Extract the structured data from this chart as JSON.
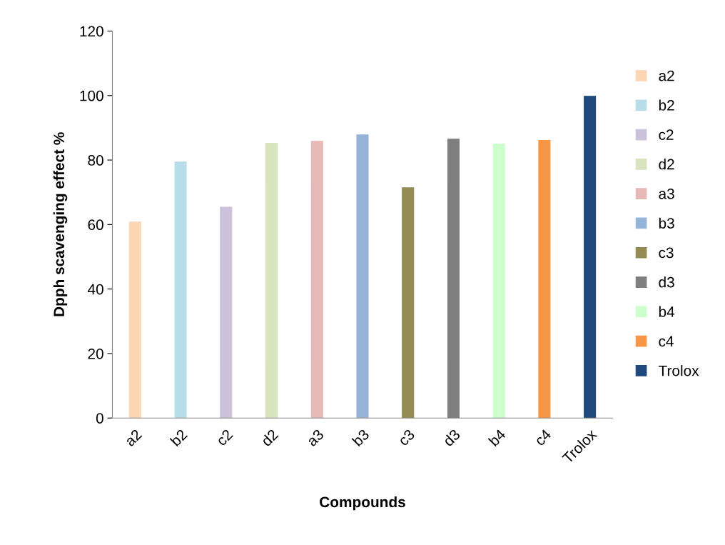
{
  "chart_data": {
    "type": "bar",
    "xlabel": "Compounds",
    "ylabel": "Dpph scavenging effect %",
    "categories": [
      "a2",
      "b2",
      "c2",
      "d2",
      "a3",
      "b3",
      "c3",
      "d3",
      "b4",
      "c4",
      "Trolox"
    ],
    "series": [
      {
        "name": "a2",
        "color": "#fcd5b5",
        "values": [
          60.8,
          null,
          null,
          null,
          null,
          null,
          null,
          null,
          null,
          null,
          null
        ]
      },
      {
        "name": "b2",
        "color": "#b7dee8",
        "values": [
          null,
          79.4,
          null,
          null,
          null,
          null,
          null,
          null,
          null,
          null,
          null
        ]
      },
      {
        "name": "c2",
        "color": "#ccc1da",
        "values": [
          null,
          null,
          65.4,
          null,
          null,
          null,
          null,
          null,
          null,
          null,
          null
        ]
      },
      {
        "name": "d2",
        "color": "#d7e4bd",
        "values": [
          null,
          null,
          null,
          85.2,
          null,
          null,
          null,
          null,
          null,
          null,
          null
        ]
      },
      {
        "name": "a3",
        "color": "#e6b9b8",
        "values": [
          null,
          null,
          null,
          null,
          85.8,
          null,
          null,
          null,
          null,
          null,
          null
        ]
      },
      {
        "name": "b3",
        "color": "#95b3d7",
        "values": [
          null,
          null,
          null,
          null,
          null,
          87.8,
          null,
          null,
          null,
          null,
          null
        ]
      },
      {
        "name": "c3",
        "color": "#948a54",
        "values": [
          null,
          null,
          null,
          null,
          null,
          null,
          71.4,
          null,
          null,
          null,
          null
        ]
      },
      {
        "name": "d3",
        "color": "#7f7f7f",
        "values": [
          null,
          null,
          null,
          null,
          null,
          null,
          null,
          86.5,
          null,
          null,
          null
        ]
      },
      {
        "name": "b4",
        "color": "#ccffcc",
        "values": [
          null,
          null,
          null,
          null,
          null,
          null,
          null,
          null,
          85.0,
          null,
          null
        ]
      },
      {
        "name": "c4",
        "color": "#f79646",
        "values": [
          null,
          null,
          null,
          null,
          null,
          null,
          null,
          null,
          null,
          86.1,
          null
        ]
      },
      {
        "name": "Trolox",
        "color": "#1f497d",
        "values": [
          null,
          null,
          null,
          null,
          null,
          null,
          null,
          null,
          null,
          null,
          99.8
        ]
      }
    ],
    "ylim": [
      0,
      120
    ],
    "yticks": [
      0,
      20,
      40,
      60,
      80,
      100,
      120
    ],
    "grid": false,
    "legend": "right"
  }
}
